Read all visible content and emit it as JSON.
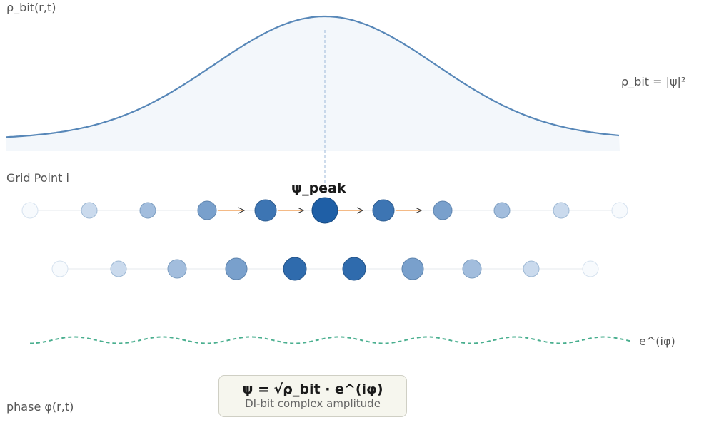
{
  "labels": {
    "density_axis": "ρ_bit(r,t)",
    "density_formula": "ρ_bit = |ψ|²",
    "grid_point": "Grid Point i",
    "peak": "ψ_peak",
    "phase_axis": "phase φ(r,t)",
    "phase_wave": "e^(iφ)"
  },
  "formula": {
    "main": "ψ = √ρ_bit · e^(iφ)",
    "caption": "DI-bit complex amplitude"
  },
  "colors": {
    "density_curve": "#5787b8",
    "density_fill": "#f3f7fb",
    "grid_line": "#e5e8ec",
    "peak_marker": "#9cb8d8",
    "flow_arrow": "#f0a35e",
    "wave": "#4aaf8f",
    "node_dark": "#1f5fa6",
    "node_light": "#e8f0fa"
  },
  "icons": {
    "flow": "arrow-right-icon"
  }
}
